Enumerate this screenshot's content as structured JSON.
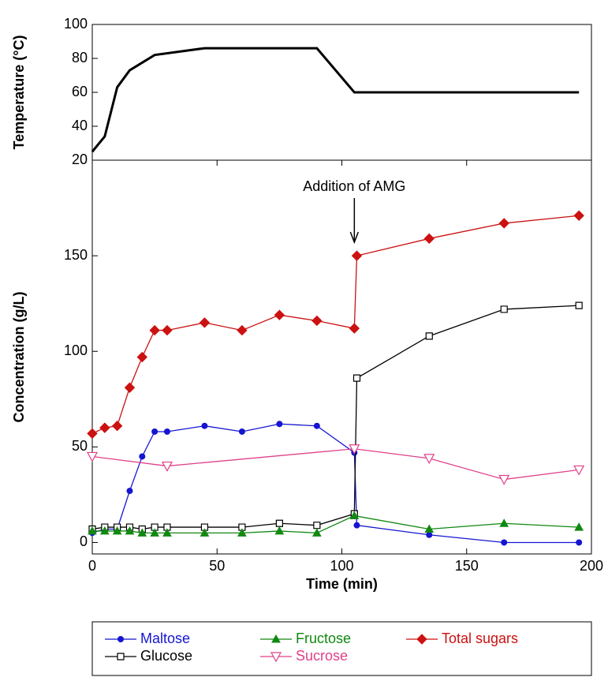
{
  "chart_data": [
    {
      "type": "line",
      "ylabel": "Temperature (°C)",
      "xlim": [
        0,
        200
      ],
      "ylim": [
        20,
        100
      ],
      "yticks": [
        20,
        40,
        60,
        80,
        100
      ],
      "series": [
        {
          "name": "Temperature",
          "color": "#000000",
          "x": [
            0,
            5,
            10,
            15,
            25,
            45,
            90,
            105,
            195
          ],
          "values": [
            25,
            34,
            63,
            73,
            82,
            86,
            86,
            60,
            60
          ]
        }
      ]
    },
    {
      "type": "line",
      "xlabel": "Time (min)",
      "ylabel": "Concentration (g/L)",
      "xlim": [
        0,
        200
      ],
      "xticks": [
        0,
        50,
        100,
        150,
        200
      ],
      "ylim": [
        -6,
        200
      ],
      "yticks": [
        0,
        50,
        100,
        150
      ],
      "annotation": {
        "text": "Addition of AMG",
        "x": 105
      },
      "series": [
        {
          "name": "Maltose",
          "color": "#1515d0",
          "marker": "circle",
          "x": [
            0,
            5,
            10,
            15,
            20,
            25,
            30,
            45,
            60,
            75,
            90,
            105,
            106,
            135,
            165,
            195
          ],
          "values": [
            5,
            7,
            7,
            27,
            45,
            58,
            58,
            61,
            58,
            62,
            61,
            47,
            9,
            4,
            0,
            0
          ]
        },
        {
          "name": "Glucose",
          "color": "#000000",
          "marker": "square-open",
          "x": [
            0,
            5,
            10,
            15,
            20,
            25,
            30,
            45,
            60,
            75,
            90,
            105,
            106,
            135,
            165,
            195
          ],
          "values": [
            7,
            8,
            8,
            8,
            7,
            8,
            8,
            8,
            8,
            10,
            9,
            15,
            86,
            108,
            122,
            124
          ]
        },
        {
          "name": "Fructose",
          "color": "#118811",
          "marker": "triangle",
          "x": [
            0,
            5,
            10,
            15,
            20,
            25,
            30,
            45,
            60,
            75,
            90,
            105,
            135,
            165,
            195
          ],
          "values": [
            6,
            6,
            6,
            6,
            5,
            5,
            5,
            5,
            5,
            6,
            5,
            14,
            7,
            10,
            8
          ]
        },
        {
          "name": "Sucrose",
          "color": "#e0408a",
          "marker": "triangle-down-open",
          "x": [
            0,
            30,
            105,
            135,
            165,
            195
          ],
          "values": [
            45,
            40,
            49,
            44,
            33,
            38
          ]
        },
        {
          "name": "Total sugars",
          "color": "#cc1111",
          "marker": "diamond",
          "x": [
            0,
            5,
            10,
            15,
            20,
            25,
            30,
            45,
            60,
            75,
            90,
            105,
            106,
            135,
            165,
            195
          ],
          "values": [
            57,
            60,
            61,
            81,
            97,
            111,
            111,
            115,
            111,
            119,
            116,
            112,
            150,
            159,
            167,
            171
          ]
        }
      ]
    }
  ]
}
